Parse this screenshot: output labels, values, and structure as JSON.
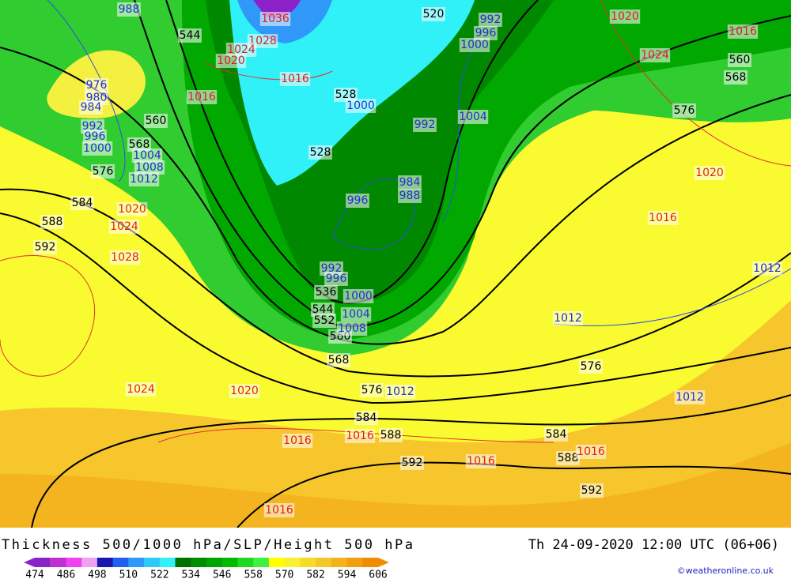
{
  "title": "Thickness 500/1000 hPa/SLP/Height 500 hPa",
  "datetime": "Th 24-09-2020 12:00 UTC (06+06)",
  "credit": "©weatheronline.co.uk",
  "colorbar": {
    "ticks": [
      474,
      486,
      498,
      510,
      522,
      534,
      546,
      558,
      570,
      582,
      594,
      606
    ],
    "colors": [
      "#8a22c8",
      "#c030d0",
      "#f040f0",
      "#f0a0f0",
      "#1818b0",
      "#2060f0",
      "#3098f8",
      "#30c8f8",
      "#30f0f8",
      "#007000",
      "#008c00",
      "#00a400",
      "#00bc00",
      "#20d820",
      "#40f040",
      "#ffff00",
      "#f8f030",
      "#f4dc28",
      "#f4c828",
      "#f2b418",
      "#f0a010",
      "#f08c00"
    ]
  },
  "map": {
    "height_labels": [
      544,
      520,
      528,
      528,
      560,
      568,
      576,
      584,
      588,
      592,
      576,
      560,
      568,
      536,
      544,
      552,
      560,
      568,
      576,
      576,
      584,
      584,
      588,
      592,
      592,
      588
    ],
    "low_pressure_labels": [
      988,
      976,
      980,
      984,
      992,
      996,
      1000,
      1004,
      1008,
      1012,
      992,
      996,
      1000,
      1000,
      992,
      1004,
      984,
      988,
      996,
      992,
      996,
      1000,
      1004,
      1008,
      1012,
      1012,
      1012,
      1012
    ],
    "high_pressure_labels": [
      1036,
      1028,
      1024,
      1020,
      1016,
      1016,
      1020,
      1024,
      1016,
      1020,
      1016,
      1020,
      1024,
      1028,
      1024,
      1020,
      1016,
      1016,
      1016,
      1016,
      1016
    ]
  }
}
